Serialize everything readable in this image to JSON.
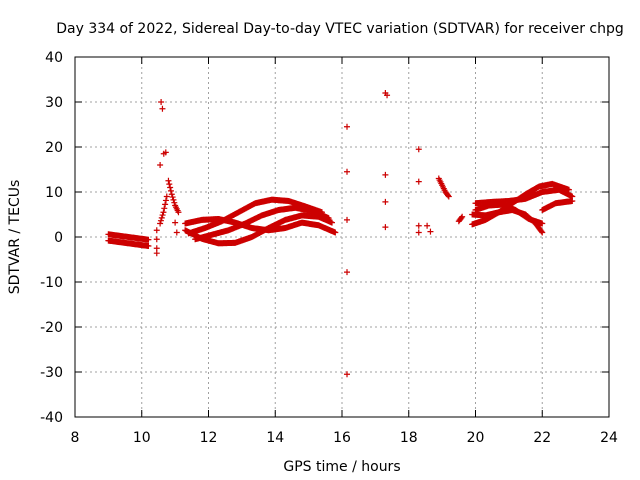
{
  "chart_data": {
    "type": "scatter",
    "title": "Day 334 of 2022, Sidereal Day-to-day VTEC variation (SDTVAR) for receiver chpg",
    "xlabel": "GPS time / hours",
    "ylabel": "SDTVAR / TECUs",
    "xlim": [
      8,
      24
    ],
    "ylim": [
      -40,
      40
    ],
    "xticks": [
      8,
      10,
      12,
      14,
      16,
      18,
      20,
      22,
      24
    ],
    "yticks": [
      -40,
      -30,
      -20,
      -10,
      0,
      10,
      20,
      30,
      40
    ],
    "grid": true,
    "marker": "+",
    "color": "#cc0000",
    "tracks": [
      [
        [
          9.0,
          -0.8
        ],
        [
          9.4,
          -1.2
        ],
        [
          9.8,
          -1.6
        ],
        [
          10.2,
          -2.0
        ]
      ],
      [
        [
          9.0,
          0.6
        ],
        [
          9.4,
          0.2
        ],
        [
          9.8,
          -0.2
        ],
        [
          10.2,
          -0.6
        ]
      ],
      [
        [
          10.55,
          3.0
        ],
        [
          10.65,
          5.5
        ],
        [
          10.75,
          9.0
        ]
      ],
      [
        [
          10.8,
          12.5
        ],
        [
          10.9,
          9.5
        ],
        [
          11.0,
          7.0
        ],
        [
          11.1,
          5.5
        ]
      ],
      [
        [
          11.3,
          1.5
        ],
        [
          11.8,
          -0.4
        ],
        [
          12.3,
          -1.4
        ],
        [
          12.8,
          -1.3
        ],
        [
          13.3,
          0.0
        ],
        [
          13.8,
          2.0
        ],
        [
          14.3,
          3.8
        ],
        [
          14.8,
          4.8
        ],
        [
          15.3,
          4.5
        ],
        [
          15.7,
          3.2
        ]
      ],
      [
        [
          11.3,
          3.0
        ],
        [
          11.8,
          3.8
        ],
        [
          12.3,
          4.0
        ],
        [
          12.8,
          3.2
        ],
        [
          13.3,
          2.0
        ],
        [
          13.8,
          1.5
        ],
        [
          14.3,
          2.0
        ],
        [
          14.8,
          3.2
        ],
        [
          15.3,
          2.6
        ],
        [
          15.8,
          1.0
        ]
      ],
      [
        [
          11.4,
          0.8
        ],
        [
          11.9,
          2.0
        ],
        [
          12.4,
          3.5
        ],
        [
          12.9,
          5.5
        ],
        [
          13.4,
          7.5
        ],
        [
          13.9,
          8.3
        ],
        [
          14.4,
          8.0
        ],
        [
          14.9,
          6.8
        ],
        [
          15.4,
          5.5
        ]
      ],
      [
        [
          11.6,
          -0.5
        ],
        [
          12.1,
          0.5
        ],
        [
          12.6,
          1.5
        ],
        [
          13.1,
          3.0
        ],
        [
          13.6,
          4.8
        ],
        [
          14.1,
          6.0
        ],
        [
          14.6,
          6.5
        ],
        [
          15.1,
          5.8
        ],
        [
          15.6,
          4.2
        ]
      ],
      [
        [
          18.9,
          13.0
        ],
        [
          19.0,
          11.5
        ],
        [
          19.1,
          10.0
        ],
        [
          19.2,
          9.0
        ]
      ],
      [
        [
          19.5,
          3.5
        ],
        [
          19.6,
          4.5
        ]
      ],
      [
        [
          19.9,
          2.8
        ],
        [
          20.3,
          3.8
        ],
        [
          20.7,
          5.5
        ],
        [
          21.1,
          7.5
        ],
        [
          21.5,
          9.5
        ],
        [
          21.9,
          11.2
        ],
        [
          22.3,
          11.8
        ],
        [
          22.8,
          10.5
        ]
      ],
      [
        [
          19.9,
          5.0
        ],
        [
          20.3,
          4.8
        ],
        [
          20.7,
          5.5
        ],
        [
          21.1,
          6.0
        ],
        [
          21.5,
          5.0
        ],
        [
          21.8,
          3.0
        ],
        [
          22.0,
          1.0
        ]
      ],
      [
        [
          20.0,
          6.0
        ],
        [
          20.4,
          7.0
        ],
        [
          20.8,
          7.2
        ],
        [
          21.2,
          6.0
        ],
        [
          21.6,
          4.0
        ],
        [
          22.0,
          3.0
        ]
      ],
      [
        [
          20.0,
          7.5
        ],
        [
          20.5,
          7.8
        ],
        [
          21.0,
          8.0
        ],
        [
          21.5,
          8.5
        ],
        [
          22.0,
          10.0
        ],
        [
          22.5,
          10.5
        ],
        [
          22.9,
          9.0
        ]
      ],
      [
        [
          22.0,
          6.0
        ],
        [
          22.4,
          7.5
        ],
        [
          22.9,
          8.0
        ]
      ]
    ],
    "points": [
      [
        10.45,
        1.5
      ],
      [
        10.45,
        -0.5
      ],
      [
        10.45,
        -2.5
      ],
      [
        10.45,
        -3.6
      ],
      [
        10.55,
        16.0
      ],
      [
        10.58,
        30.0
      ],
      [
        10.62,
        28.5
      ],
      [
        10.66,
        18.5
      ],
      [
        10.72,
        18.8
      ],
      [
        11.0,
        3.2
      ],
      [
        11.05,
        1.0
      ],
      [
        16.15,
        24.5
      ],
      [
        16.15,
        14.5
      ],
      [
        16.15,
        3.8
      ],
      [
        16.15,
        -7.8
      ],
      [
        16.15,
        -30.5
      ],
      [
        17.3,
        32.0
      ],
      [
        17.35,
        31.5
      ],
      [
        17.3,
        13.8
      ],
      [
        17.3,
        7.8
      ],
      [
        17.3,
        2.2
      ],
      [
        18.3,
        19.5
      ],
      [
        18.3,
        12.3
      ],
      [
        18.3,
        2.5
      ],
      [
        18.3,
        1.0
      ],
      [
        18.55,
        2.5
      ],
      [
        18.65,
        1.2
      ]
    ]
  }
}
